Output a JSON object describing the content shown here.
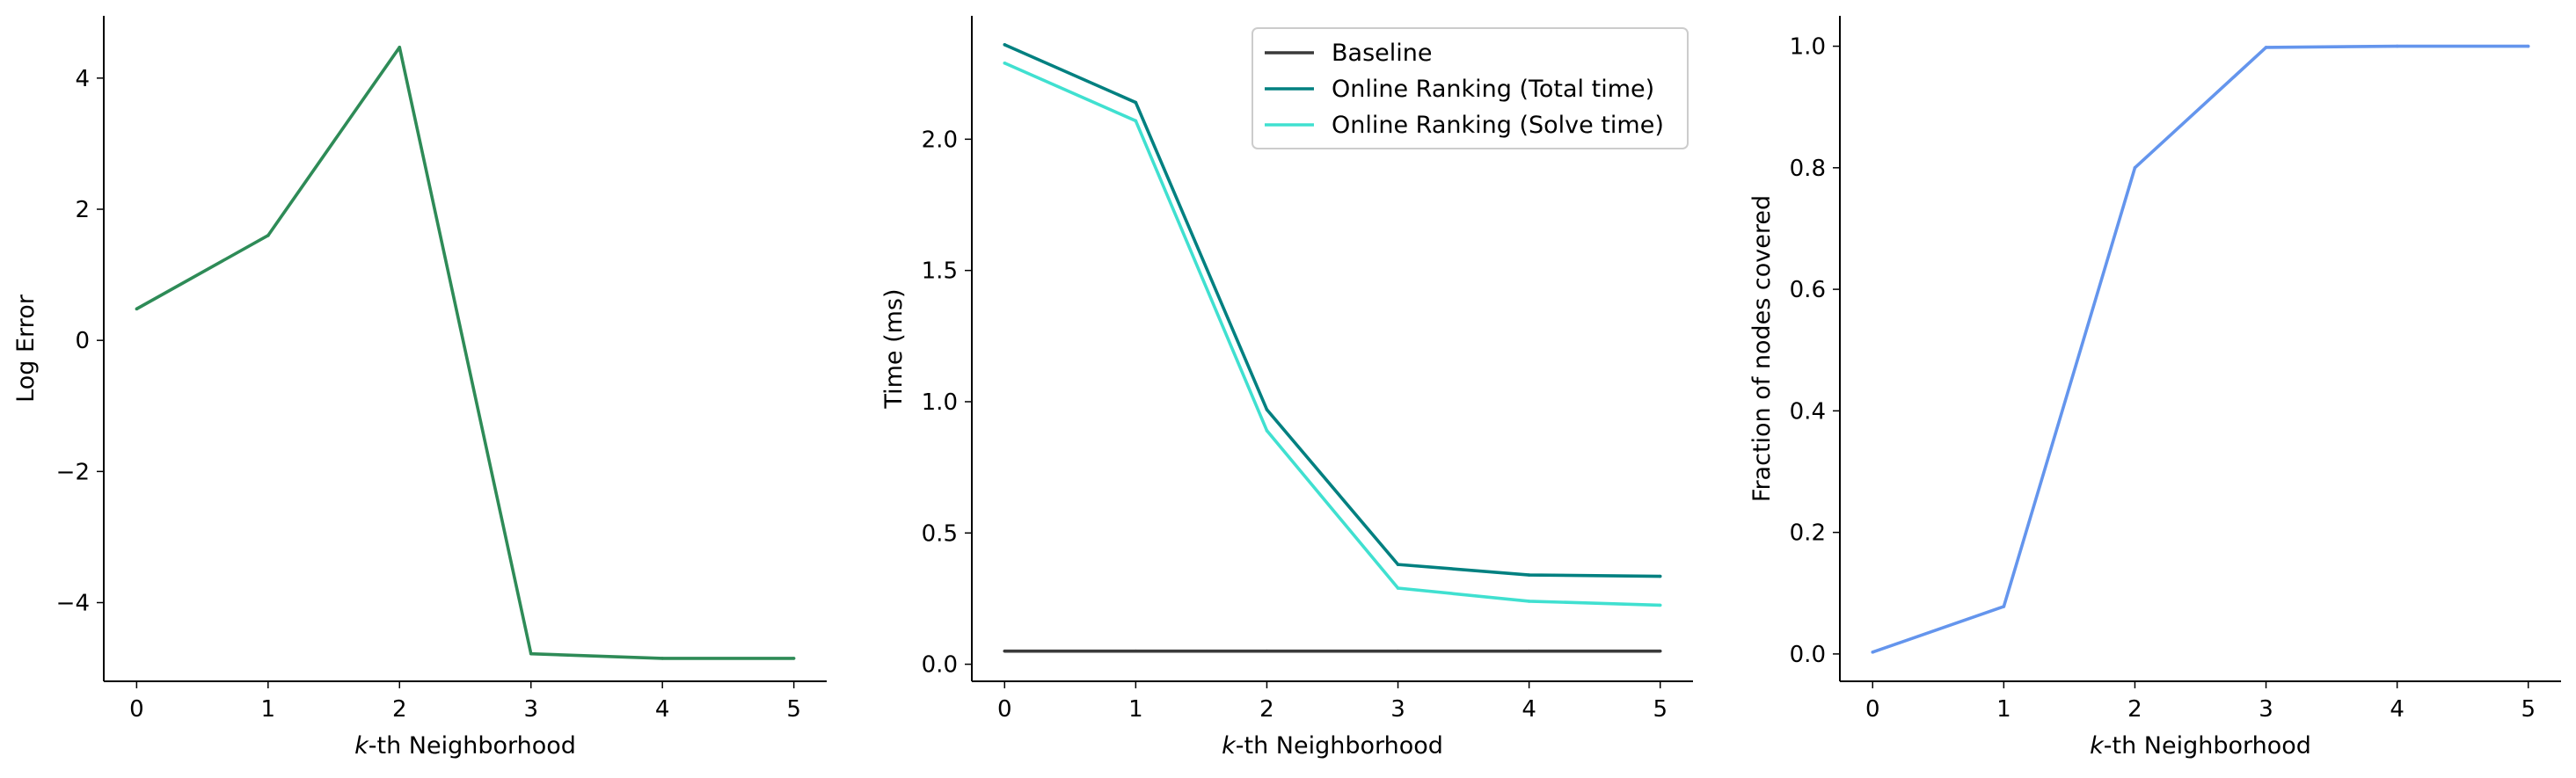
{
  "chart_data": [
    {
      "type": "line",
      "title": "",
      "xlabel_italic": "k",
      "xlabel_rest": "-th Neighborhood",
      "ylabel": "Log Error",
      "xlim": [
        -0.25,
        5.25
      ],
      "ylim": [
        -5.2,
        4.95
      ],
      "xticks": [
        0,
        1,
        2,
        3,
        4,
        5
      ],
      "yticks": [
        -4,
        -2,
        0,
        2,
        4
      ],
      "ytick_labels": [
        "−4",
        "−2",
        "0",
        "2",
        "4"
      ],
      "grid": false,
      "legend": null,
      "series": [
        {
          "color": "#2e8b57",
          "x": [
            0,
            1,
            2,
            3,
            4,
            5
          ],
          "y": [
            0.48,
            1.6,
            4.47,
            -4.78,
            -4.85,
            -4.85
          ]
        }
      ]
    },
    {
      "type": "line",
      "title": "",
      "xlabel_italic": "k",
      "xlabel_rest": "-th Neighborhood",
      "ylabel": "Time (ms)",
      "xlim": [
        -0.25,
        5.25
      ],
      "ylim": [
        -0.065,
        2.47
      ],
      "xticks": [
        0,
        1,
        2,
        3,
        4,
        5
      ],
      "yticks": [
        0.0,
        0.5,
        1.0,
        1.5,
        2.0
      ],
      "ytick_labels": [
        "0.0",
        "0.5",
        "1.0",
        "1.5",
        "2.0"
      ],
      "grid": false,
      "legend": "top-right",
      "series": [
        {
          "name": "Baseline",
          "color": "#3a3a3a",
          "x": [
            0,
            1,
            2,
            3,
            4,
            5
          ],
          "y": [
            0.05,
            0.05,
            0.05,
            0.05,
            0.05,
            0.05
          ]
        },
        {
          "name": "Online Ranking (Total time)",
          "color": "#008080",
          "x": [
            0,
            1,
            2,
            3,
            4,
            5
          ],
          "y": [
            2.36,
            2.14,
            0.97,
            0.38,
            0.34,
            0.335
          ]
        },
        {
          "name": "Online Ranking (Solve time)",
          "color": "#40e0d0",
          "x": [
            0,
            1,
            2,
            3,
            4,
            5
          ],
          "y": [
            2.29,
            2.07,
            0.89,
            0.29,
            0.24,
            0.225
          ]
        }
      ]
    },
    {
      "type": "line",
      "title": "",
      "xlabel_italic": "k",
      "xlabel_rest": "-th Neighborhood",
      "ylabel": "Fraction of nodes covered",
      "xlim": [
        -0.25,
        5.25
      ],
      "ylim": [
        -0.045,
        1.05
      ],
      "xticks": [
        0,
        1,
        2,
        3,
        4,
        5
      ],
      "yticks": [
        0.0,
        0.2,
        0.4,
        0.6,
        0.8,
        1.0
      ],
      "ytick_labels": [
        "0.0",
        "0.2",
        "0.4",
        "0.6",
        "0.8",
        "1.0"
      ],
      "grid": false,
      "legend": null,
      "series": [
        {
          "color": "#6495ed",
          "x": [
            0,
            1,
            2,
            3,
            4,
            5
          ],
          "y": [
            0.003,
            0.078,
            0.8,
            0.998,
            1.0,
            1.0
          ]
        }
      ]
    }
  ]
}
